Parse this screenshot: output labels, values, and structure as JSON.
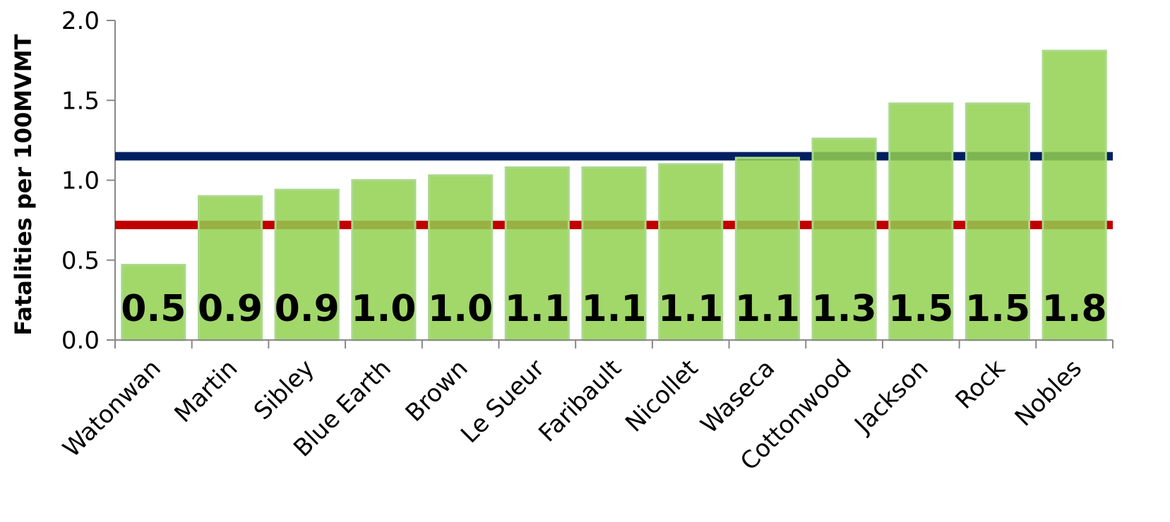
{
  "chart_data": {
    "type": "bar",
    "y_label": "Fatalities per 100MVMT",
    "categories": [
      "Watonwan",
      "Martin",
      "Sibley",
      "Blue Earth",
      "Brown",
      "Le Sueur",
      "Faribault",
      "Nicollet",
      "Waseca",
      "Cottonwood",
      "Jackson",
      "Rock",
      "Nobles"
    ],
    "values": [
      0.47,
      0.9,
      0.94,
      1.0,
      1.03,
      1.08,
      1.08,
      1.1,
      1.14,
      1.26,
      1.48,
      1.48,
      1.81
    ],
    "value_labels": [
      "0.5",
      "0.9",
      "0.9",
      "1.0",
      "1.0",
      "1.1",
      "1.1",
      "1.1",
      "1.1",
      "1.3",
      "1.5",
      "1.5",
      "1.8"
    ],
    "color": "#92d050",
    "reference_lines": [
      {
        "value": 1.15,
        "color": "#002060"
      },
      {
        "value": 0.72,
        "color": "#c00000"
      }
    ],
    "ylim": [
      0,
      2.0
    ],
    "yticks": [
      {
        "value": 0,
        "label": "0.0"
      },
      {
        "value": 0.5,
        "label": "0.5"
      },
      {
        "value": 1.0,
        "label": "1.0"
      },
      {
        "value": 1.5,
        "label": "1.5"
      },
      {
        "value": 2.0,
        "label": "2.0"
      }
    ]
  }
}
